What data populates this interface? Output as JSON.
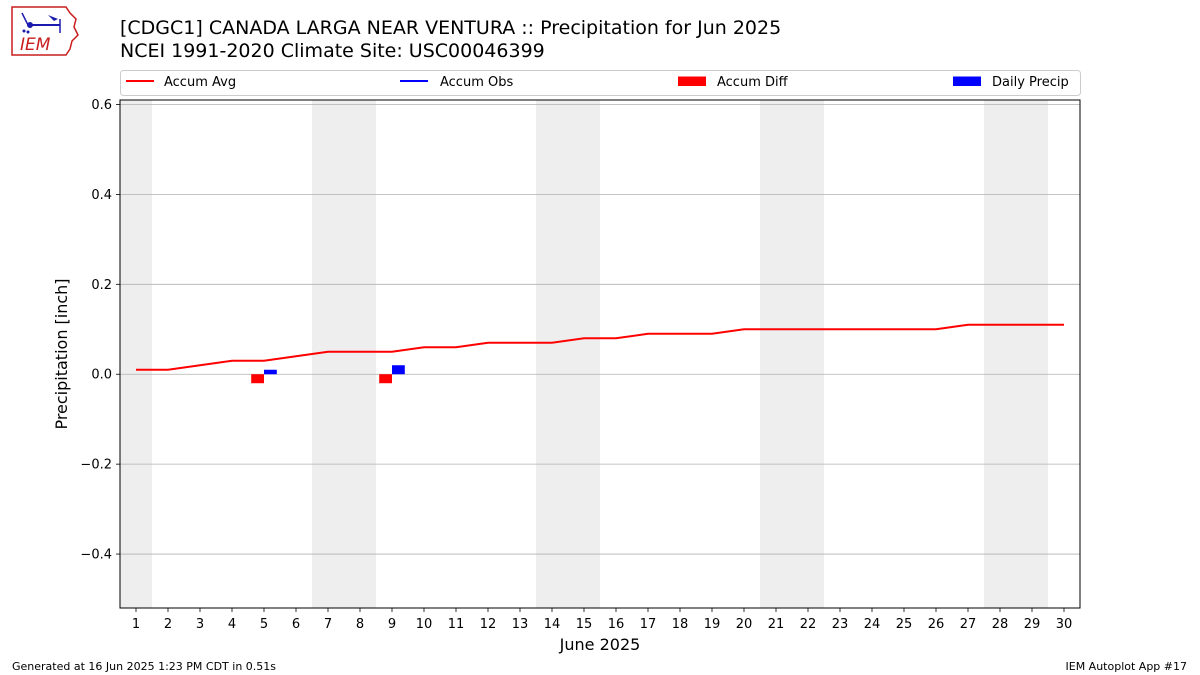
{
  "header": {
    "title_line1": "[CDGC1] CANADA LARGA NEAR VENTURA :: Precipitation for Jun 2025",
    "title_line2": "NCEI 1991-2020 Climate Site: USC00046399",
    "logo_text": "IEM"
  },
  "footer": {
    "generated": "Generated at 16 Jun 2025 1:23 PM CDT in 0.51s",
    "app": "IEM Autoplot App #17"
  },
  "colors": {
    "accum_avg": "#ff0000",
    "accum_obs": "#0000ff",
    "accum_diff": "#ff0000",
    "daily_precip": "#0000ff",
    "weekend_shade": "#eeeeee",
    "grid": "#b0b0b0"
  },
  "chart_data": {
    "type": "line",
    "title": "[CDGC1] CANADA LARGA NEAR VENTURA :: Precipitation for Jun 2025",
    "xlabel": "June 2025",
    "ylabel": "Precipitation [inch]",
    "xlim": [
      0.5,
      30.5
    ],
    "ylim": [
      -0.52,
      0.61
    ],
    "x_ticks": [
      1,
      2,
      3,
      4,
      5,
      6,
      7,
      8,
      9,
      10,
      11,
      12,
      13,
      14,
      15,
      16,
      17,
      18,
      19,
      20,
      21,
      22,
      23,
      24,
      25,
      26,
      27,
      28,
      29,
      30
    ],
    "y_ticks": [
      -0.4,
      -0.2,
      0.0,
      0.2,
      0.4,
      0.6
    ],
    "y_tick_labels": [
      "−0.4",
      "−0.2",
      "0.0",
      "0.2",
      "0.4",
      "0.6"
    ],
    "grid": "horizontal",
    "legend_position": "top",
    "weekend_days": [
      1,
      7,
      8,
      14,
      15,
      21,
      22,
      28,
      29
    ],
    "legend": [
      "Accum Avg",
      "Accum Obs",
      "Accum Diff",
      "Daily Precip"
    ],
    "series": [
      {
        "name": "Accum Avg",
        "type": "line",
        "x": [
          1,
          2,
          3,
          4,
          5,
          6,
          7,
          8,
          9,
          10,
          11,
          12,
          13,
          14,
          15,
          16,
          17,
          18,
          19,
          20,
          21,
          22,
          23,
          24,
          25,
          26,
          27,
          28,
          29,
          30
        ],
        "values": [
          0.01,
          0.01,
          0.02,
          0.03,
          0.03,
          0.04,
          0.05,
          0.05,
          0.05,
          0.06,
          0.06,
          0.07,
          0.07,
          0.07,
          0.08,
          0.08,
          0.09,
          0.09,
          0.09,
          0.1,
          0.1,
          0.1,
          0.1,
          0.1,
          0.1,
          0.1,
          0.11,
          0.11,
          0.11,
          0.11
        ]
      },
      {
        "name": "Accum Diff",
        "type": "bar",
        "x": [
          5,
          9
        ],
        "values": [
          -0.02,
          -0.02
        ]
      },
      {
        "name": "Daily Precip",
        "type": "bar",
        "x": [
          5,
          9
        ],
        "values": [
          0.01,
          0.02
        ]
      }
    ]
  }
}
